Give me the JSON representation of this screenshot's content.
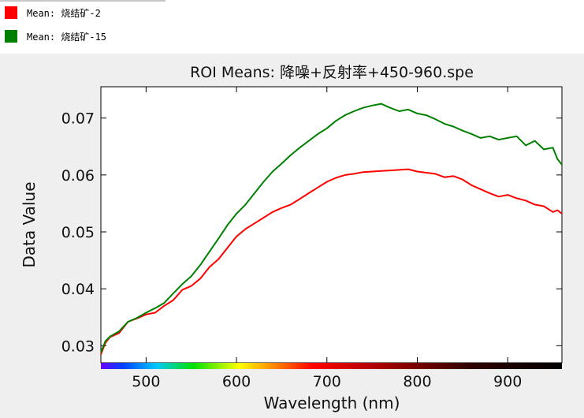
{
  "legend": {
    "items": [
      {
        "label": "Mean: 烧结矿-2",
        "color": "#ff0000"
      },
      {
        "label": "Mean: 烧结矿-15",
        "color": "#008000"
      }
    ]
  },
  "chart_data": {
    "type": "line",
    "title": "ROI Means: 降噪+反射率+450-960.spe",
    "xlabel": "Wavelength (nm)",
    "ylabel": "Data Value",
    "xlim": [
      450,
      960
    ],
    "ylim": [
      0.027,
      0.0755
    ],
    "xticks": [
      500,
      600,
      700,
      800,
      900
    ],
    "yticks": [
      0.03,
      0.04,
      0.05,
      0.06,
      0.07
    ],
    "ytick_labels": [
      "0.03",
      "0.04",
      "0.05",
      "0.06",
      "0.07"
    ],
    "colorbar": "spectrum along x-axis",
    "series": [
      {
        "name": "Mean: 烧结矿-2",
        "color": "#ff0000",
        "x": [
          450,
          455,
          460,
          470,
          480,
          490,
          500,
          510,
          520,
          530,
          540,
          550,
          560,
          570,
          580,
          590,
          600,
          610,
          620,
          630,
          640,
          650,
          660,
          670,
          680,
          690,
          700,
          710,
          720,
          730,
          740,
          750,
          760,
          770,
          780,
          790,
          800,
          810,
          820,
          830,
          840,
          850,
          860,
          870,
          880,
          890,
          900,
          910,
          920,
          930,
          940,
          950,
          955,
          960
        ],
        "y": [
          0.0285,
          0.0305,
          0.0315,
          0.0322,
          0.0342,
          0.0348,
          0.0355,
          0.0358,
          0.037,
          0.038,
          0.0398,
          0.0405,
          0.0418,
          0.0438,
          0.0452,
          0.0472,
          0.0492,
          0.0505,
          0.0515,
          0.0525,
          0.0535,
          0.0542,
          0.0548,
          0.0558,
          0.0568,
          0.0578,
          0.0588,
          0.0595,
          0.06,
          0.0602,
          0.0605,
          0.0606,
          0.0607,
          0.0608,
          0.0609,
          0.061,
          0.0606,
          0.0604,
          0.0602,
          0.0596,
          0.0598,
          0.0592,
          0.0582,
          0.0575,
          0.0568,
          0.0562,
          0.0565,
          0.0559,
          0.0555,
          0.0548,
          0.0545,
          0.0535,
          0.0538,
          0.0532
        ]
      },
      {
        "name": "Mean: 烧结矿-15",
        "color": "#008000",
        "x": [
          450,
          455,
          460,
          470,
          480,
          490,
          500,
          510,
          520,
          530,
          540,
          550,
          560,
          570,
          580,
          590,
          600,
          610,
          620,
          630,
          640,
          650,
          660,
          670,
          680,
          690,
          700,
          710,
          720,
          730,
          740,
          750,
          760,
          770,
          780,
          790,
          800,
          810,
          820,
          830,
          840,
          850,
          860,
          870,
          880,
          890,
          900,
          910,
          920,
          930,
          940,
          950,
          955,
          960
        ],
        "y": [
          0.0288,
          0.0308,
          0.0316,
          0.0325,
          0.0342,
          0.0349,
          0.0358,
          0.0366,
          0.0375,
          0.0392,
          0.0408,
          0.0422,
          0.0442,
          0.0465,
          0.0488,
          0.0512,
          0.0532,
          0.0548,
          0.0568,
          0.0588,
          0.0606,
          0.062,
          0.0635,
          0.0648,
          0.066,
          0.0672,
          0.0682,
          0.0695,
          0.0705,
          0.0712,
          0.0718,
          0.0722,
          0.0725,
          0.0718,
          0.0712,
          0.0715,
          0.0708,
          0.0705,
          0.0698,
          0.069,
          0.0685,
          0.0678,
          0.0672,
          0.0665,
          0.0668,
          0.0662,
          0.0665,
          0.0668,
          0.0652,
          0.066,
          0.0645,
          0.0648,
          0.0628,
          0.0618
        ]
      }
    ]
  }
}
